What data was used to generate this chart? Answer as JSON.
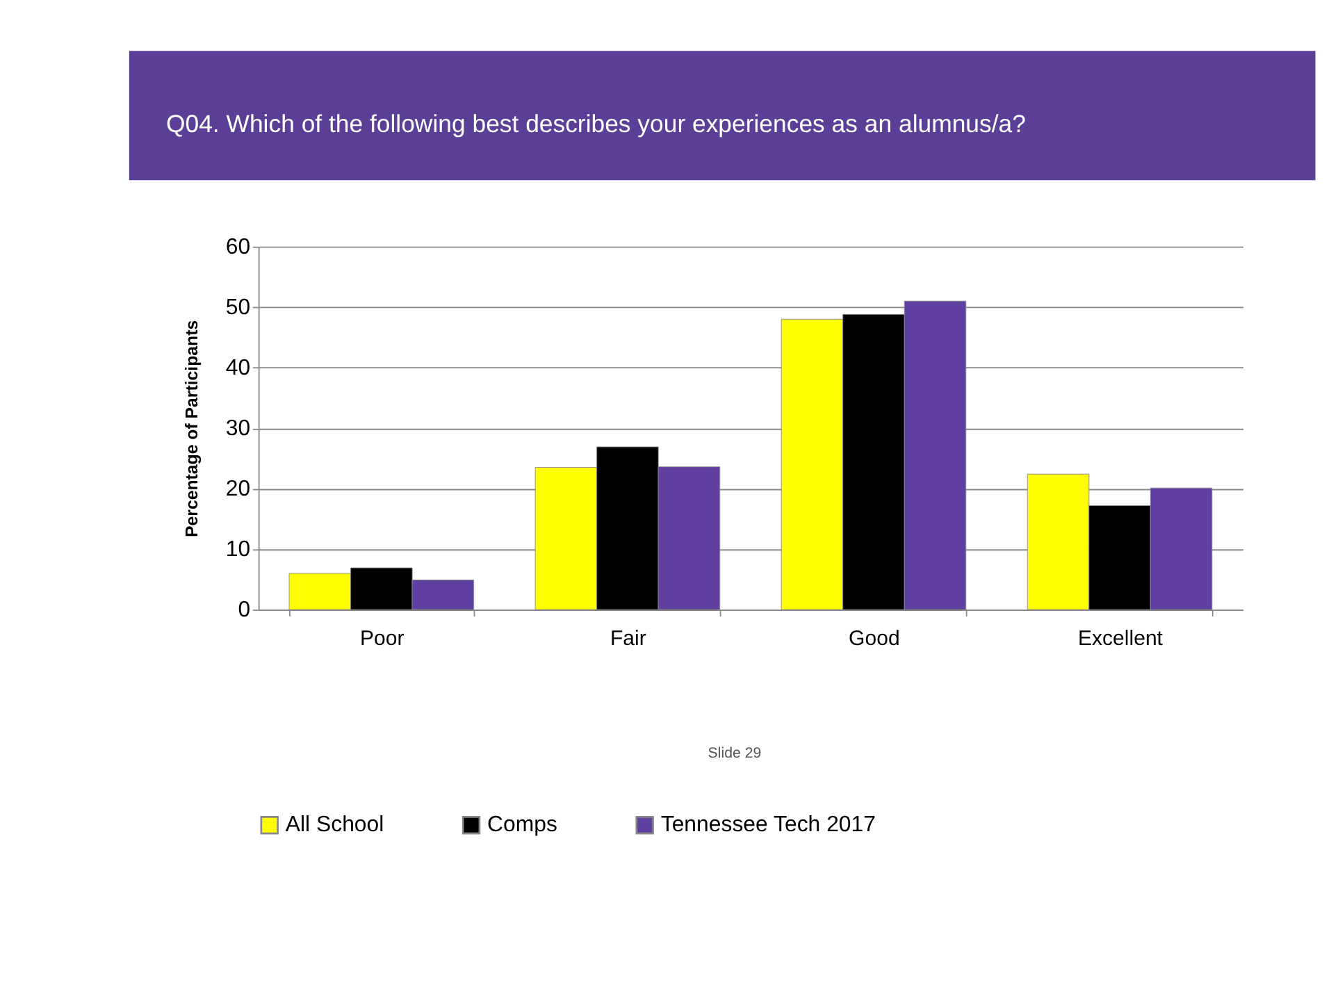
{
  "chart_data": {
    "type": "bar",
    "title": "Q04. Which of the following best describes your experiences as an alumnus/a?",
    "ylabel": "Percentage of Participants",
    "categories": [
      "Poor",
      "Fair",
      "Good",
      "Excellent"
    ],
    "series": [
      {
        "name": "All School",
        "color": "#ffff00",
        "values": [
          6.0,
          23.5,
          48.0,
          22.4
        ]
      },
      {
        "name": "Comps",
        "color": "#000000",
        "values": [
          6.9,
          26.9,
          48.8,
          17.2
        ]
      },
      {
        "name": "Tennessee Tech 2017",
        "color": "#5f3f9f",
        "values": [
          4.9,
          23.6,
          51.0,
          20.1
        ]
      }
    ],
    "ylim": [
      0,
      60
    ],
    "yticks": [
      0,
      10,
      20,
      30,
      40,
      50,
      60
    ],
    "grid": "y",
    "legend": "bottom",
    "annotations": [
      "Slide 29"
    ]
  }
}
